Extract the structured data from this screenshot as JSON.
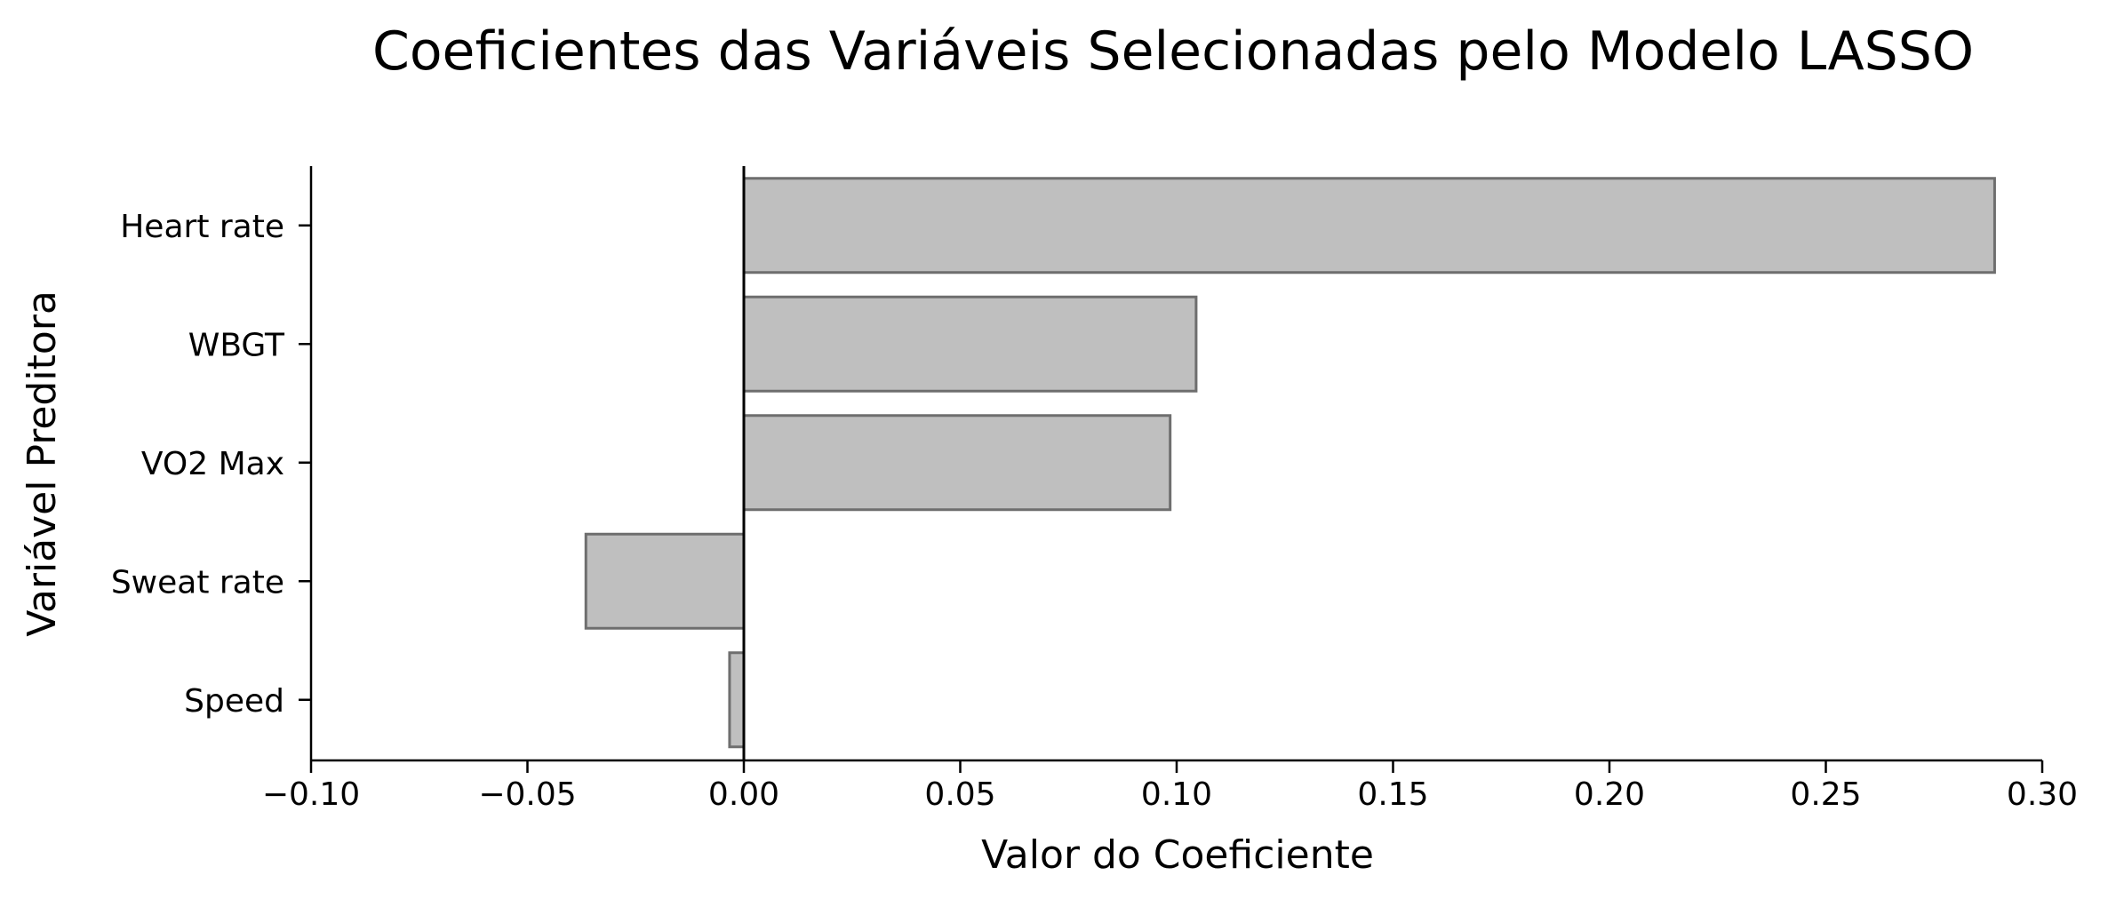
{
  "chart_data": {
    "type": "bar",
    "orientation": "horizontal",
    "title": "Coeficientes das Variáveis Selecionadas pelo Modelo LASSO",
    "xlabel": "Valor do Coeficiente",
    "ylabel": "Variável Preditora",
    "xlim": [
      -0.1,
      0.3
    ],
    "xticks": [
      -0.1,
      -0.05,
      0.0,
      0.05,
      0.1,
      0.15,
      0.2,
      0.25,
      0.3
    ],
    "xtick_labels": [
      "−0.10",
      "−0.05",
      "0.00",
      "0.05",
      "0.10",
      "0.15",
      "0.20",
      "0.25",
      "0.30"
    ],
    "categories": [
      "Heart rate",
      "WBGT",
      "VO2 Max",
      "Sweat rate",
      "Speed"
    ],
    "values": [
      0.289,
      0.1045,
      0.0985,
      -0.0365,
      -0.0033
    ],
    "grid": false,
    "bar_fill": "#bfbfbf",
    "bar_edge": "#6e6e6e",
    "zero_line_color": "#000000"
  }
}
